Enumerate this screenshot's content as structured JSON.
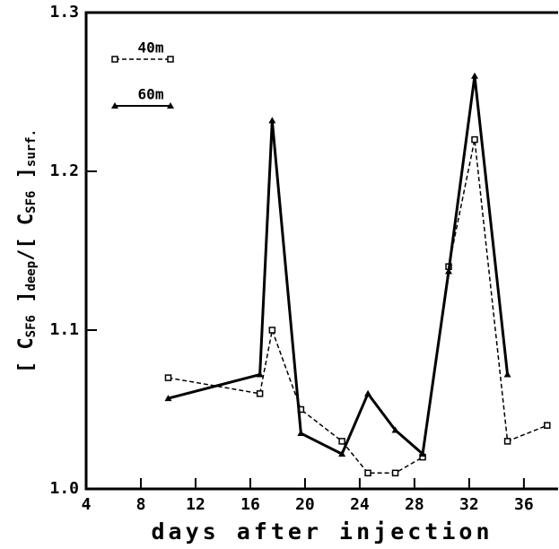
{
  "chart_data": {
    "type": "line",
    "xlabel": "days after injection",
    "ylabel_parts": [
      "[ C",
      "SF6",
      " ]",
      "deep",
      "/[ C",
      "SF6",
      " ]",
      "surf."
    ],
    "xlim": [
      4,
      38.5
    ],
    "xticks": [
      4,
      8,
      12,
      16,
      20,
      24,
      28,
      32,
      36
    ],
    "ylim": [
      1.0,
      1.3
    ],
    "yticks": [
      {
        "value": 1.0,
        "label": "1.0"
      },
      1.1,
      1.2,
      1.3
    ],
    "legend": "upper left",
    "series": [
      {
        "name": "40m",
        "color": "#000000",
        "dash": true,
        "marker": "square",
        "x": [
          10,
          16.7,
          17.6,
          19.7,
          22.7,
          24.6,
          26.6,
          28.6,
          30.5,
          32.4,
          34.8,
          37.7
        ],
        "values": [
          1.07,
          1.06,
          1.1,
          1.05,
          1.03,
          1.01,
          1.01,
          1.02,
          1.14,
          1.22,
          1.03,
          1.04
        ]
      },
      {
        "name": "60m",
        "color": "#000000",
        "dash": false,
        "marker": "triangle",
        "x": [
          10,
          16.7,
          17.6,
          19.7,
          22.7,
          24.6,
          26.6,
          28.6,
          30.5,
          32.4,
          34.8
        ],
        "values": [
          1.057,
          1.072,
          1.232,
          1.035,
          1.022,
          1.06,
          1.037,
          1.022,
          1.137,
          1.26,
          1.072
        ]
      }
    ]
  }
}
